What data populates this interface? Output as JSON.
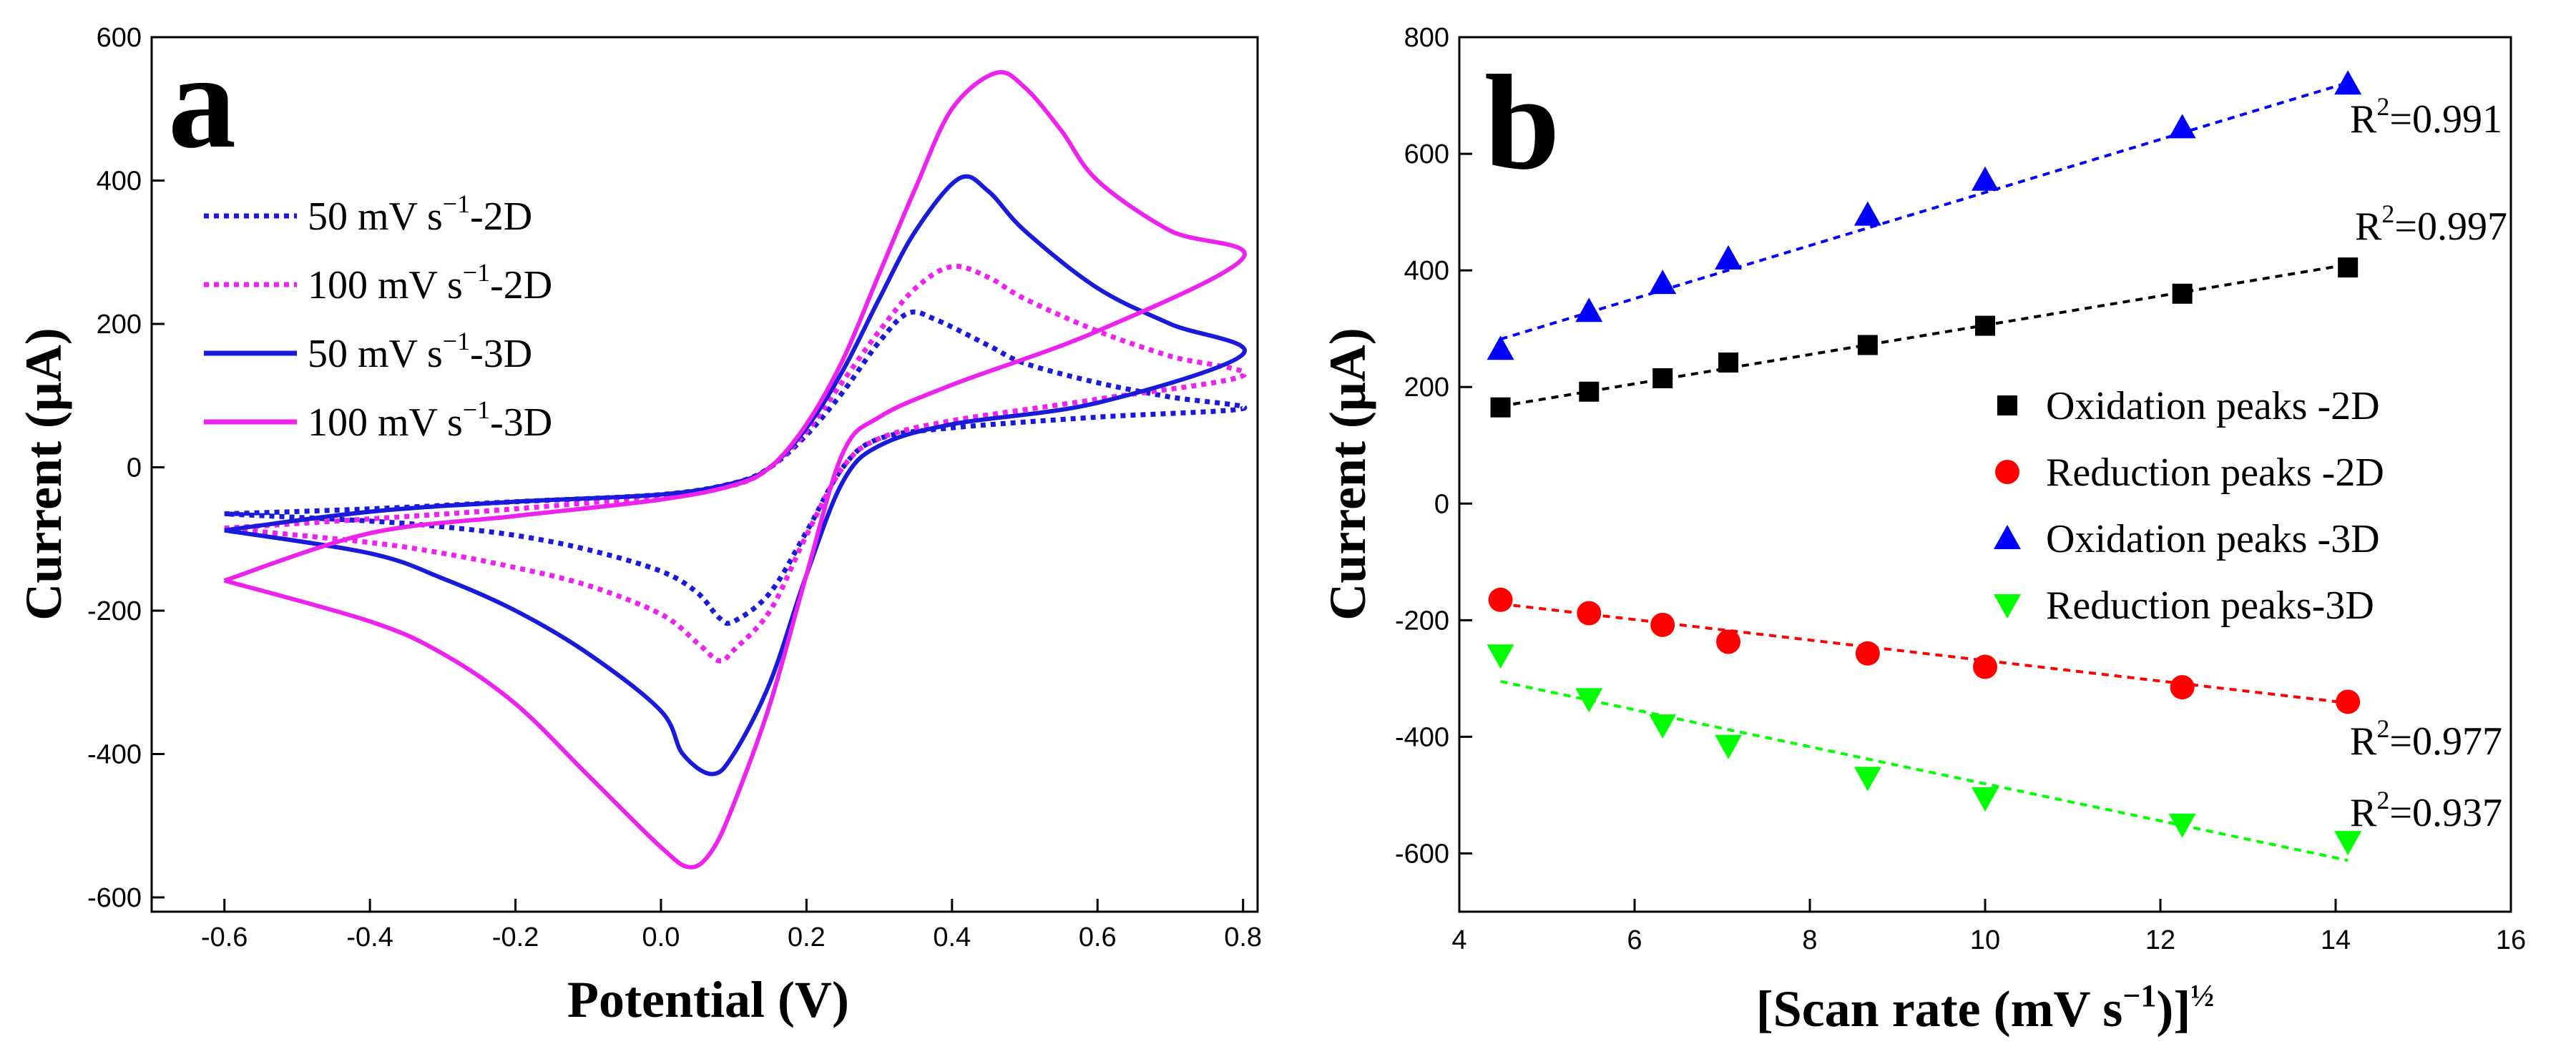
{
  "chart_data": [
    {
      "panel": "a",
      "type": "line",
      "title": "",
      "xlabel": "Potential (V)",
      "ylabel": "Current (μA)",
      "xlim": [
        -0.7,
        0.82
      ],
      "ylim": [
        -620,
        600
      ],
      "xticks": [
        -0.6,
        -0.4,
        -0.2,
        0.0,
        0.2,
        0.4,
        0.6,
        0.8
      ],
      "yticks": [
        -600,
        -400,
        -200,
        0,
        200,
        400,
        600
      ],
      "xtick_labels": [
        "-0.6",
        "-0.4",
        "-0.2",
        "0.0",
        "0.2",
        "0.4",
        "0.6",
        "0.8"
      ],
      "ytick_labels": [
        "-600",
        "-400",
        "-200",
        "0",
        "200",
        "400",
        "600"
      ],
      "legend_position": "top-left",
      "series": [
        {
          "name": "50 mV s⁻¹-2D",
          "label_parts": {
            "pre": "50 mV s",
            "sup": "−1",
            "post": "-2D"
          },
          "color": "#1a1adb",
          "style": "dotted",
          "forward": [
            [
              -0.6,
              -65
            ],
            [
              -0.4,
              -58
            ],
            [
              -0.2,
              -48
            ],
            [
              0.0,
              -38
            ],
            [
              0.1,
              -22
            ],
            [
              0.15,
              0
            ],
            [
              0.2,
              45
            ],
            [
              0.25,
              105
            ],
            [
              0.3,
              175
            ],
            [
              0.34,
              215
            ],
            [
              0.38,
              205
            ],
            [
              0.45,
              170
            ],
            [
              0.5,
              145
            ],
            [
              0.6,
              118
            ],
            [
              0.7,
              98
            ],
            [
              0.8,
              82
            ]
          ],
          "reverse": [
            [
              0.8,
              82
            ],
            [
              0.6,
              70
            ],
            [
              0.4,
              55
            ],
            [
              0.3,
              40
            ],
            [
              0.25,
              0
            ],
            [
              0.2,
              -90
            ],
            [
              0.15,
              -175
            ],
            [
              0.1,
              -215
            ],
            [
              0.08,
              -210
            ],
            [
              0.05,
              -175
            ],
            [
              0.0,
              -145
            ],
            [
              -0.1,
              -115
            ],
            [
              -0.2,
              -95
            ],
            [
              -0.3,
              -83
            ],
            [
              -0.4,
              -75
            ],
            [
              -0.6,
              -65
            ]
          ]
        },
        {
          "name": "100 mV s⁻¹-2D",
          "label_parts": {
            "pre": "100 mV s",
            "sup": "−1",
            "post": "-2D"
          },
          "color": "#ee22ee",
          "style": "dotted",
          "forward": [
            [
              -0.6,
              -85
            ],
            [
              -0.4,
              -72
            ],
            [
              -0.2,
              -58
            ],
            [
              0.0,
              -40
            ],
            [
              0.1,
              -25
            ],
            [
              0.15,
              0
            ],
            [
              0.2,
              50
            ],
            [
              0.25,
              120
            ],
            [
              0.3,
              190
            ],
            [
              0.35,
              250
            ],
            [
              0.4,
              280
            ],
            [
              0.45,
              265
            ],
            [
              0.5,
              235
            ],
            [
              0.6,
              190
            ],
            [
              0.7,
              155
            ],
            [
              0.8,
              128
            ]
          ],
          "reverse": [
            [
              0.8,
              128
            ],
            [
              0.6,
              95
            ],
            [
              0.4,
              65
            ],
            [
              0.3,
              40
            ],
            [
              0.25,
              0
            ],
            [
              0.2,
              -95
            ],
            [
              0.15,
              -200
            ],
            [
              0.1,
              -255
            ],
            [
              0.08,
              -270
            ],
            [
              0.05,
              -245
            ],
            [
              0.0,
              -205
            ],
            [
              -0.1,
              -165
            ],
            [
              -0.2,
              -140
            ],
            [
              -0.3,
              -120
            ],
            [
              -0.4,
              -105
            ],
            [
              -0.6,
              -85
            ]
          ]
        },
        {
          "name": "50 mV s⁻¹-3D",
          "label_parts": {
            "pre": "50 mV s",
            "sup": "−1",
            "post": "-3D"
          },
          "color": "#1a1adb",
          "style": "solid",
          "forward": [
            [
              -0.6,
              -88
            ],
            [
              -0.4,
              -62
            ],
            [
              -0.2,
              -48
            ],
            [
              0.0,
              -38
            ],
            [
              0.1,
              -22
            ],
            [
              0.15,
              0
            ],
            [
              0.2,
              55
            ],
            [
              0.25,
              135
            ],
            [
              0.3,
              235
            ],
            [
              0.35,
              330
            ],
            [
              0.41,
              403
            ],
            [
              0.45,
              385
            ],
            [
              0.5,
              330
            ],
            [
              0.6,
              250
            ],
            [
              0.7,
              200
            ],
            [
              0.8,
              158
            ]
          ],
          "reverse": [
            [
              0.8,
              158
            ],
            [
              0.6,
              90
            ],
            [
              0.4,
              60
            ],
            [
              0.3,
              30
            ],
            [
              0.25,
              -20
            ],
            [
              0.2,
              -150
            ],
            [
              0.15,
              -300
            ],
            [
              0.1,
              -400
            ],
            [
              0.07,
              -428
            ],
            [
              0.03,
              -400
            ],
            [
              0.0,
              -340
            ],
            [
              -0.1,
              -260
            ],
            [
              -0.2,
              -200
            ],
            [
              -0.3,
              -155
            ],
            [
              -0.4,
              -120
            ],
            [
              -0.6,
              -88
            ]
          ]
        },
        {
          "name": "100 mV s⁻¹-3D",
          "label_parts": {
            "pre": "100 mV s",
            "sup": "−1",
            "post": "-3D"
          },
          "color": "#ee22ee",
          "style": "solid",
          "forward": [
            [
              -0.6,
              -158
            ],
            [
              -0.4,
              -92
            ],
            [
              -0.2,
              -68
            ],
            [
              0.0,
              -45
            ],
            [
              0.1,
              -25
            ],
            [
              0.15,
              0
            ],
            [
              0.2,
              60
            ],
            [
              0.25,
              150
            ],
            [
              0.3,
              270
            ],
            [
              0.35,
              390
            ],
            [
              0.4,
              500
            ],
            [
              0.46,
              550
            ],
            [
              0.5,
              530
            ],
            [
              0.55,
              470
            ],
            [
              0.6,
              400
            ],
            [
              0.7,
              330
            ],
            [
              0.8,
              292
            ]
          ],
          "reverse": [
            [
              0.8,
              292
            ],
            [
              0.6,
              190
            ],
            [
              0.4,
              115
            ],
            [
              0.3,
              70
            ],
            [
              0.25,
              20
            ],
            [
              0.2,
              -150
            ],
            [
              0.15,
              -330
            ],
            [
              0.1,
              -470
            ],
            [
              0.07,
              -535
            ],
            [
              0.04,
              -558
            ],
            [
              0.0,
              -530
            ],
            [
              -0.1,
              -430
            ],
            [
              -0.2,
              -330
            ],
            [
              -0.3,
              -260
            ],
            [
              -0.4,
              -215
            ],
            [
              -0.6,
              -158
            ]
          ]
        }
      ]
    },
    {
      "panel": "b",
      "type": "scatter",
      "title": "",
      "xlabel": "[Scan rate (mV s⁻¹)]½",
      "xlabel_parts": {
        "pre": "[Scan rate (mV s",
        "sup": "−1",
        "mid": ")]",
        "sup2": "½"
      },
      "ylabel": "Current (μA)",
      "xlim": [
        4,
        16
      ],
      "ylim": [
        -700,
        800
      ],
      "xticks": [
        4,
        6,
        8,
        10,
        12,
        14,
        16
      ],
      "yticks": [
        -600,
        -400,
        -200,
        0,
        200,
        400,
        600,
        800
      ],
      "xtick_labels": [
        "4",
        "6",
        "8",
        "10",
        "12",
        "14",
        "16"
      ],
      "ytick_labels": [
        "-600",
        "-400",
        "-200",
        "0",
        "200",
        "400",
        "600",
        "800"
      ],
      "legend_position": "center-right",
      "x": [
        4.47,
        5.48,
        6.32,
        7.07,
        8.66,
        10.0,
        12.25,
        14.14
      ],
      "series": [
        {
          "name": "Oxidation peaks -2D",
          "marker": "square",
          "color": "#000000",
          "values": [
            165,
            192,
            215,
            242,
            272,
            305,
            360,
            405
          ],
          "fit": [
            4.47,
            167,
            14.14,
            410
          ],
          "r2_label": "R",
          "r2_sup": "2",
          "r2_value": "=0.997"
        },
        {
          "name": "Reduction peaks -2D",
          "marker": "circle",
          "color": "#ff0000",
          "values": [
            -165,
            -188,
            -208,
            -237,
            -257,
            -280,
            -315,
            -340
          ],
          "fit": [
            4.47,
            -172,
            14.14,
            -342
          ],
          "r2_label": "R",
          "r2_sup": "2",
          "r2_value": "=0.977"
        },
        {
          "name": "Oxidation peaks -3D",
          "marker": "triangle-up",
          "color": "#0000ff",
          "values": [
            265,
            330,
            378,
            420,
            495,
            555,
            645,
            720
          ],
          "fit": [
            4.47,
            282,
            14.14,
            722
          ],
          "r2_label": "R",
          "r2_sup": "2",
          "r2_value": "=0.991"
        },
        {
          "name": "Reduction peaks-3D",
          "marker": "triangle-down",
          "color": "#00ff00",
          "values": [
            -260,
            -335,
            -380,
            -415,
            -470,
            -505,
            -550,
            -580
          ],
          "fit": [
            4.47,
            -305,
            14.14,
            -612
          ],
          "r2_label": "R",
          "r2_sup": "2",
          "r2_value": "=0.937"
        }
      ]
    }
  ]
}
